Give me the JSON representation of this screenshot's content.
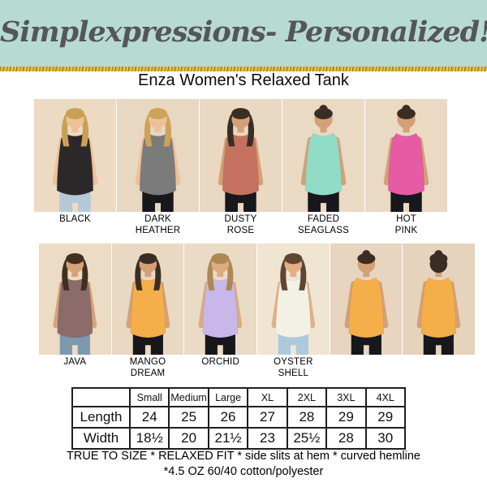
{
  "banner": {
    "title": "Simplexpressions- Personalized!",
    "bg_color": "#b7dbd0",
    "text_color": "#55565a",
    "glitter_gold": "#c7a02e"
  },
  "product": {
    "title": "Enza Women's Relaxed Tank"
  },
  "colorways": {
    "rows": [
      {
        "items": [
          {
            "name": "Black",
            "label_lines": [
              "BLACK"
            ],
            "tank": "#2c2829",
            "hair": "#c9a156",
            "skin": "#efc19b",
            "pants": "#b6c9d6",
            "bg": "#ecdac3",
            "view": "front",
            "hairstyle": "long"
          },
          {
            "name": "Dark Heather",
            "label_lines": [
              "DARK",
              "HEATHER"
            ],
            "tank": "#7b7b7b",
            "hair": "#cda35a",
            "skin": "#eec09a",
            "pants": "#17171c",
            "bg": "#e8d7c1",
            "view": "front",
            "hairstyle": "long"
          },
          {
            "name": "Dusty Rose",
            "label_lines": [
              "DUSTY",
              "ROSE"
            ],
            "tank": "#c4725f",
            "hair": "#3a2d24",
            "skin": "#d4a077",
            "pants": "#17171c",
            "bg": "#e9d8c2",
            "view": "front",
            "hairstyle": "long"
          },
          {
            "name": "Faded Seaglass",
            "label_lines": [
              "FADED",
              "SEAGLASS"
            ],
            "tank": "#90dcc6",
            "hair": "#3a2d24",
            "skin": "#d4a077",
            "pants": "#17171c",
            "bg": "#ead9c3",
            "view": "front",
            "hairstyle": "bun"
          },
          {
            "name": "Hot Pink",
            "label_lines": [
              "HOT",
              "PINK"
            ],
            "tank": "#e75aa4",
            "hair": "#3a2d24",
            "skin": "#d4a077",
            "pants": "#17171c",
            "bg": "#ead9c3",
            "view": "front",
            "hairstyle": "bun"
          }
        ]
      },
      {
        "items": [
          {
            "name": "Java",
            "label_lines": [
              "JAVA"
            ],
            "tank": "#8c6b6b",
            "hair": "#42301f",
            "skin": "#d6a279",
            "pants": "#7e98ae",
            "bg": "#ecdbc5",
            "view": "front",
            "hairstyle": "long"
          },
          {
            "name": "Mango Dream",
            "label_lines": [
              "MANGO",
              "DREAM"
            ],
            "tank": "#f4ae4a",
            "hair": "#3a2d24",
            "skin": "#d4a077",
            "pants": "#17171c",
            "bg": "#e9d8c2",
            "view": "front",
            "hairstyle": "long"
          },
          {
            "name": "Orchid",
            "label_lines": [
              "ORCHID"
            ],
            "tank": "#c9b7e9",
            "hair": "#ab8854",
            "skin": "#dcab80",
            "pants": "#17171c",
            "bg": "#eadbc6",
            "view": "front",
            "hairstyle": "long"
          },
          {
            "name": "Oyster Shell",
            "label_lines": [
              "OYSTER",
              "SHELL"
            ],
            "tank": "#f3f1e6",
            "hair": "#5f4632",
            "skin": "#e2af85",
            "pants": "#aec8dc",
            "bg": "#f0e5d3",
            "view": "front",
            "hairstyle": "long"
          },
          {
            "name": "",
            "label_lines": [],
            "tank": "#f4ae4a",
            "hair": "#3a2d24",
            "skin": "#d4a077",
            "pants": "#17171c",
            "bg": "#e7d5bf",
            "view": "side",
            "hairstyle": "bun"
          },
          {
            "name": "",
            "label_lines": [],
            "tank": "#f4ae4a",
            "hair": "#3a2d24",
            "skin": "#d4a077",
            "pants": "#17171c",
            "bg": "#e5d3bd",
            "view": "back",
            "hairstyle": "bun"
          }
        ]
      }
    ]
  },
  "size_chart": {
    "columns": [
      "",
      "Small",
      "Medium",
      "Large",
      "XL",
      "2XL",
      "3XL",
      "4XL"
    ],
    "rows": [
      {
        "label": "Length",
        "values": [
          "24",
          "25",
          "26",
          "27",
          "28",
          "29",
          "29"
        ]
      },
      {
        "label": "Width",
        "values": [
          "18½",
          "20",
          "21½",
          "23",
          "25½",
          "28",
          "30"
        ]
      }
    ]
  },
  "footer": {
    "line1": "TRUE TO SIZE * RELAXED FIT * side slits at hem * curved hemline",
    "line2": "*4.5 OZ 60/40 cotton/polyester"
  }
}
